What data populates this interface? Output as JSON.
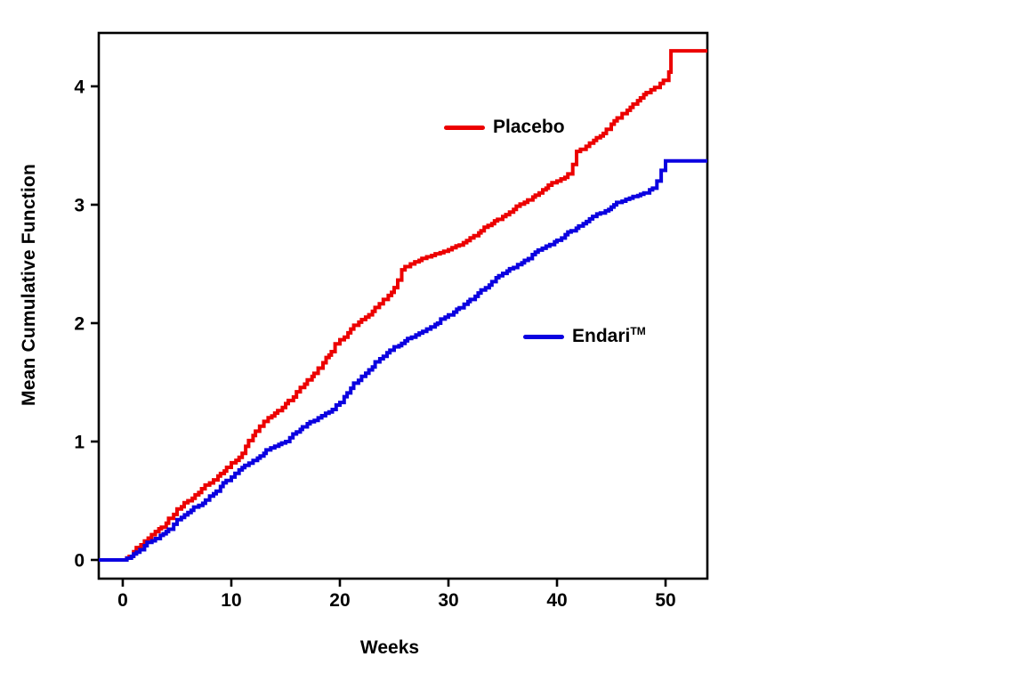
{
  "chart_data": {
    "type": "line",
    "subtype": "step",
    "xlabel": "Weeks",
    "ylabel": "Mean Cumulative Function",
    "xlim": [
      -2.21,
      53.85
    ],
    "ylim": [
      -0.158,
      4.451
    ],
    "xticks": [
      0,
      10,
      20,
      30,
      40,
      50
    ],
    "yticks": [
      0,
      1,
      2,
      3,
      4
    ],
    "grid": false,
    "frame": "full-box",
    "axis_color": "#000000",
    "background": "#ffffff",
    "legend_position": "inside-plot",
    "series": [
      {
        "name": "Placebo",
        "name_suffix": "",
        "color": "#ec0000",
        "points": [
          [
            -2.21,
            0
          ],
          [
            0,
            0
          ],
          [
            0.6,
            0.03
          ],
          [
            1,
            0.07
          ],
          [
            2,
            0.16
          ],
          [
            3,
            0.24
          ],
          [
            4,
            0.31
          ],
          [
            5,
            0.43
          ],
          [
            6,
            0.5
          ],
          [
            7,
            0.57
          ],
          [
            8,
            0.65
          ],
          [
            9,
            0.73
          ],
          [
            10,
            0.82
          ],
          [
            11,
            0.9
          ],
          [
            12,
            1.05
          ],
          [
            13,
            1.17
          ],
          [
            14,
            1.24
          ],
          [
            15,
            1.32
          ],
          [
            16,
            1.42
          ],
          [
            17,
            1.52
          ],
          [
            18,
            1.62
          ],
          [
            19,
            1.73
          ],
          [
            20,
            1.86
          ],
          [
            21,
            1.95
          ],
          [
            22,
            2.03
          ],
          [
            23,
            2.1
          ],
          [
            24,
            2.2
          ],
          [
            25,
            2.3
          ],
          [
            25.7,
            2.45
          ],
          [
            26.5,
            2.5
          ],
          [
            28,
            2.56
          ],
          [
            30,
            2.62
          ],
          [
            31,
            2.66
          ],
          [
            32,
            2.72
          ],
          [
            33,
            2.78
          ],
          [
            34,
            2.84
          ],
          [
            35,
            2.9
          ],
          [
            36,
            2.96
          ],
          [
            37,
            3.02
          ],
          [
            38,
            3.08
          ],
          [
            39,
            3.14
          ],
          [
            40,
            3.2
          ],
          [
            41,
            3.26
          ],
          [
            41.8,
            3.45
          ],
          [
            43,
            3.52
          ],
          [
            44,
            3.58
          ],
          [
            45,
            3.68
          ],
          [
            46,
            3.77
          ],
          [
            47,
            3.85
          ],
          [
            48,
            3.93
          ],
          [
            49,
            3.99
          ],
          [
            49.8,
            4.05
          ],
          [
            50.3,
            4.12
          ],
          [
            50.5,
            4.3
          ],
          [
            53.85,
            4.3
          ]
        ]
      },
      {
        "name": "Endari",
        "name_suffix": "TM",
        "color": "#0b00e0",
        "points": [
          [
            -2.21,
            0
          ],
          [
            0,
            0
          ],
          [
            0.8,
            0.03
          ],
          [
            1,
            0.05
          ],
          [
            2,
            0.12
          ],
          [
            3,
            0.18
          ],
          [
            4,
            0.24
          ],
          [
            5,
            0.34
          ],
          [
            6,
            0.4
          ],
          [
            7,
            0.46
          ],
          [
            8,
            0.54
          ],
          [
            9,
            0.62
          ],
          [
            10,
            0.7
          ],
          [
            11,
            0.78
          ],
          [
            12,
            0.84
          ],
          [
            13,
            0.9
          ],
          [
            14,
            0.96
          ],
          [
            15,
            1.0
          ],
          [
            16,
            1.08
          ],
          [
            17,
            1.15
          ],
          [
            18,
            1.2
          ],
          [
            19,
            1.25
          ],
          [
            20,
            1.33
          ],
          [
            21,
            1.45
          ],
          [
            22,
            1.55
          ],
          [
            23,
            1.63
          ],
          [
            24,
            1.72
          ],
          [
            25,
            1.8
          ],
          [
            26,
            1.85
          ],
          [
            27,
            1.9
          ],
          [
            28,
            1.95
          ],
          [
            29,
            2.0
          ],
          [
            30,
            2.07
          ],
          [
            31,
            2.13
          ],
          [
            32,
            2.2
          ],
          [
            33,
            2.28
          ],
          [
            34,
            2.35
          ],
          [
            35,
            2.42
          ],
          [
            36,
            2.47
          ],
          [
            37,
            2.53
          ],
          [
            38,
            2.6
          ],
          [
            39,
            2.65
          ],
          [
            40,
            2.7
          ],
          [
            41,
            2.77
          ],
          [
            42,
            2.82
          ],
          [
            43,
            2.88
          ],
          [
            44,
            2.93
          ],
          [
            45,
            2.98
          ],
          [
            46,
            3.03
          ],
          [
            47,
            3.07
          ],
          [
            48,
            3.1
          ],
          [
            48.8,
            3.14
          ],
          [
            49.2,
            3.2
          ],
          [
            49.6,
            3.29
          ],
          [
            50,
            3.37
          ],
          [
            53.85,
            3.37
          ]
        ]
      }
    ]
  }
}
